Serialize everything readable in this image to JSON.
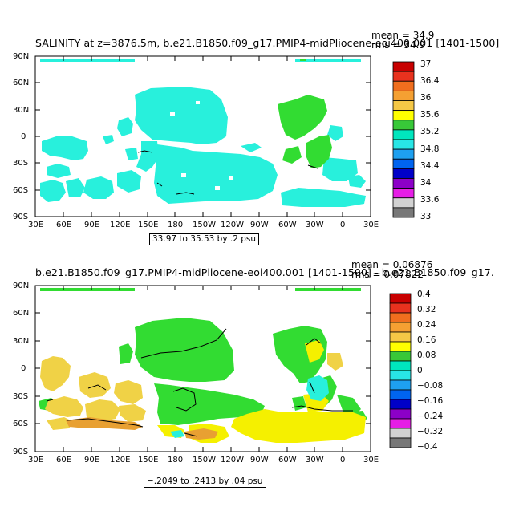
{
  "panels": [
    {
      "title": "SALINITY at z=3876.5m, b.e21.B1850.f09_g17.PMIP4-midPliocene-eoi400.001 [1401-1500]",
      "stats": {
        "mean": "mean = 34.9",
        "rms": "rms = 34.9"
      },
      "range": "33.97 to 35.53 by .2 psu",
      "x_ticks": [
        "30E",
        "60E",
        "90E",
        "120E",
        "150E",
        "180",
        "150W",
        "120W",
        "90W",
        "60W",
        "30W",
        "0",
        "30E"
      ],
      "y_ticks": [
        "90N",
        "60N",
        "30N",
        "0",
        "30S",
        "60S",
        "90S"
      ],
      "colorbar": {
        "labels": [
          "37",
          "36.4",
          "36",
          "35.6",
          "35.2",
          "34.8",
          "34.4",
          "34",
          "33.6",
          "33"
        ],
        "colors": [
          "#c80000",
          "#e8321e",
          "#f06e1e",
          "#f5a032",
          "#f5c846",
          "#ffff00",
          "#38c838",
          "#00e6be",
          "#28e6e6",
          "#1ea0f0",
          "#0064f0",
          "#0000c8",
          "#8c00c8",
          "#e61ee6",
          "#d2d2d2",
          "#787878"
        ]
      }
    },
    {
      "title": "b.e21.B1850.f09_g17.PMIP4-midPliocene-eoi400.001 [1401-1500] - b.e21.B1850.f09_g17.",
      "stats": {
        "mean": "mean = 0.06876",
        "rms": "rms = 0.07822"
      },
      "range": "−.2049 to .2413 by .04 psu",
      "x_ticks": [
        "30E",
        "60E",
        "90E",
        "120E",
        "150E",
        "180",
        "150W",
        "120W",
        "90W",
        "60W",
        "30W",
        "0",
        "30E"
      ],
      "y_ticks": [
        "90N",
        "60N",
        "30N",
        "0",
        "30S",
        "60S",
        "90S"
      ],
      "colorbar": {
        "labels": [
          "0.4",
          "0.32",
          "0.24",
          "0.16",
          "0.08",
          "0",
          "−0.08",
          "−0.16",
          "−0.24",
          "−0.32",
          "−0.4"
        ],
        "colors": [
          "#c80000",
          "#e8321e",
          "#f06e1e",
          "#f5a032",
          "#f5c846",
          "#ffff00",
          "#38c838",
          "#00e6be",
          "#28e6e6",
          "#1ea0f0",
          "#0064f0",
          "#0000c8",
          "#8c00c8",
          "#e61ee6",
          "#d2d2d2",
          "#787878"
        ]
      }
    }
  ],
  "map_colors": {
    "cyan": "#28f0dc",
    "green": "#32dc32",
    "yellow": "#f5f000",
    "gold": "#f0d246",
    "orange": "#e8a032",
    "contour": "#000000"
  }
}
